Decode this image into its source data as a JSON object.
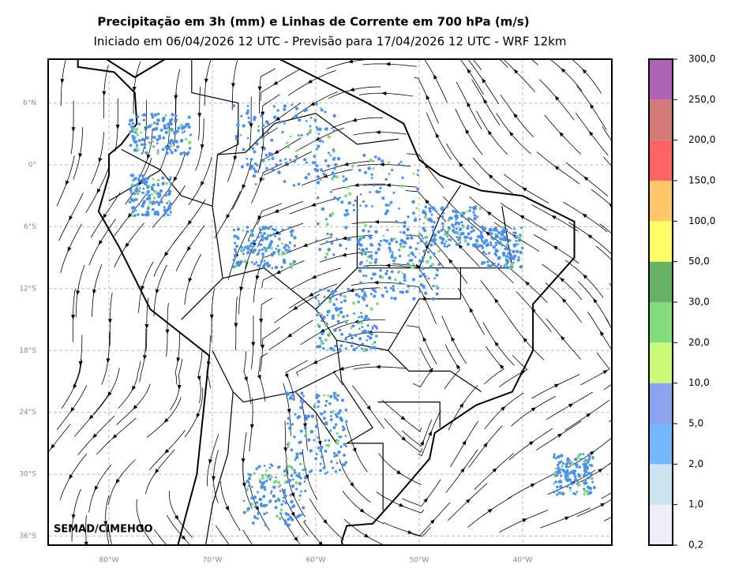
{
  "title": "Precipitação em 3h (mm) e Linhas de Corrente em 700 hPa (m/s)",
  "subtitle": "Iniciado em 06/04/2026 12 UTC - Previsão para 17/04/2026 12 UTC - WRF 12km",
  "map": {
    "lat_labels": [
      "6°N",
      "0°",
      "6°S",
      "12°S",
      "18°S",
      "24°S",
      "30°S",
      "36°S"
    ],
    "lon_labels": [
      "80°W",
      "70°W",
      "60°W",
      "50°W",
      "40°W"
    ],
    "credit": "SEMAD/CIMEHGO"
  },
  "colorbar": {
    "labels": [
      "0,2",
      "1,0",
      "2,0",
      "5,0",
      "10,0",
      "20,0",
      "30,0",
      "50,0",
      "100,0",
      "150,0",
      "200,0",
      "250,0",
      "300,0"
    ],
    "colors": [
      "#eeeef8",
      "#cce4ee",
      "#73b8fc",
      "#8ca3f0",
      "#ccfa78",
      "#82dc7c",
      "#68b266",
      "#fefe66",
      "#fec76a",
      "#fe6464",
      "#d47a78",
      "#b062b6"
    ]
  }
}
